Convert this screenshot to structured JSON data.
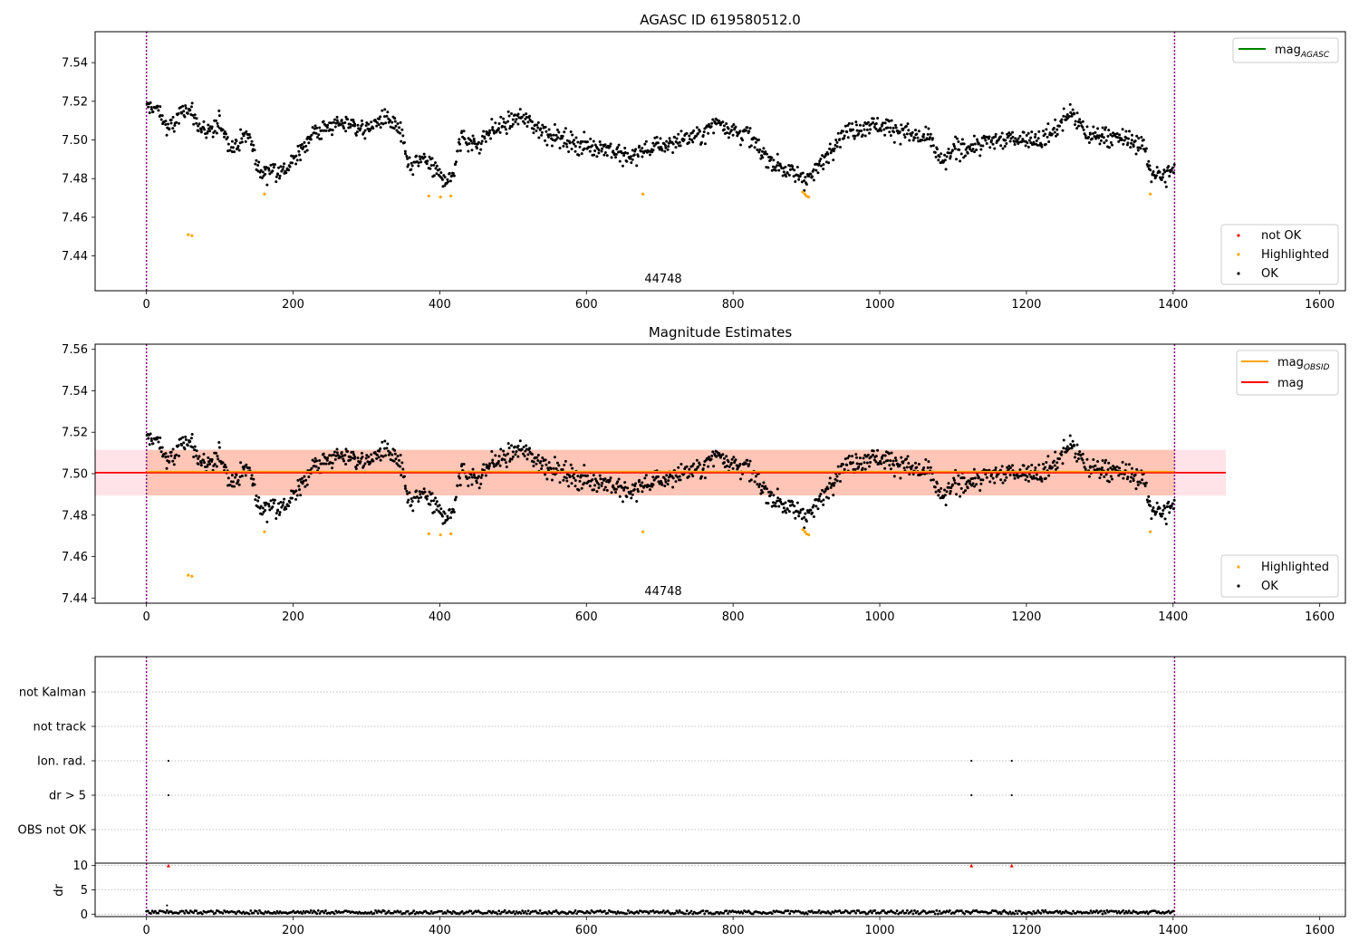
{
  "colors": {
    "ok": "#000000",
    "highlighted": "#ffa500",
    "not_ok": "#ff0000",
    "mag_agasc_line": "#008000",
    "mag_obsid_line": "#ffa500",
    "mag_line": "#ff0000",
    "mag_band": "#ffc0cb",
    "obsid_band": "#ffa07a",
    "obsid_boundary": "#800080"
  },
  "chart_data": [
    {
      "type": "scatter",
      "panel": "top",
      "title": "AGASC ID 619580512.0",
      "xlim": [
        -70,
        1635
      ],
      "ylim": [
        7.422,
        7.556
      ],
      "xticks": [
        0,
        200,
        400,
        600,
        800,
        1000,
        1200,
        1400,
        1600
      ],
      "yticks": [
        "7.44",
        "7.46",
        "7.48",
        "7.50",
        "7.52",
        "7.54"
      ],
      "obsid_label": {
        "text": "44748",
        "x": 700,
        "y": 7.426
      },
      "obsid_boundaries": [
        0,
        1402
      ],
      "legend_lines": [
        {
          "name": "mag",
          "subscript": "AGASC",
          "color": "#008000"
        }
      ],
      "legend_points": [
        {
          "name": "not OK",
          "color": "#ff0000"
        },
        {
          "name": "Highlighted",
          "color": "#ffa500"
        },
        {
          "name": "OK",
          "color": "#000000"
        }
      ],
      "highlighted_points": [
        [
          57,
          7.451
        ],
        [
          62,
          7.4505
        ],
        [
          161,
          7.472
        ],
        [
          385,
          7.471
        ],
        [
          401,
          7.4705
        ],
        [
          415,
          7.471
        ],
        [
          677,
          7.472
        ],
        [
          895,
          7.473
        ],
        [
          898,
          7.472
        ],
        [
          900,
          7.471
        ],
        [
          903,
          7.4705
        ],
        [
          1369,
          7.472
        ]
      ],
      "ok_series": {
        "x_range": [
          0,
          1402
        ],
        "count": 1402,
        "anchors": [
          [
            0,
            7.517
          ],
          [
            15,
            7.516
          ],
          [
            30,
            7.505
          ],
          [
            45,
            7.512
          ],
          [
            55,
            7.518
          ],
          [
            70,
            7.508
          ],
          [
            85,
            7.502
          ],
          [
            100,
            7.51
          ],
          [
            115,
            7.496
          ],
          [
            140,
            7.503
          ],
          [
            155,
            7.482
          ],
          [
            170,
            7.486
          ],
          [
            185,
            7.483
          ],
          [
            205,
            7.491
          ],
          [
            225,
            7.503
          ],
          [
            250,
            7.507
          ],
          [
            275,
            7.509
          ],
          [
            300,
            7.505
          ],
          [
            325,
            7.512
          ],
          [
            345,
            7.505
          ],
          [
            360,
            7.485
          ],
          [
            380,
            7.491
          ],
          [
            395,
            7.483
          ],
          [
            415,
            7.479
          ],
          [
            430,
            7.502
          ],
          [
            450,
            7.497
          ],
          [
            470,
            7.505
          ],
          [
            490,
            7.508
          ],
          [
            510,
            7.512
          ],
          [
            540,
            7.505
          ],
          [
            570,
            7.5
          ],
          [
            600,
            7.497
          ],
          [
            630,
            7.496
          ],
          [
            655,
            7.49
          ],
          [
            680,
            7.495
          ],
          [
            700,
            7.497
          ],
          [
            730,
            7.5
          ],
          [
            760,
            7.503
          ],
          [
            780,
            7.51
          ],
          [
            800,
            7.505
          ],
          [
            820,
            7.503
          ],
          [
            840,
            7.493
          ],
          [
            860,
            7.487
          ],
          [
            880,
            7.483
          ],
          [
            900,
            7.48
          ],
          [
            920,
            7.487
          ],
          [
            940,
            7.5
          ],
          [
            960,
            7.505
          ],
          [
            985,
            7.508
          ],
          [
            1010,
            7.507
          ],
          [
            1040,
            7.503
          ],
          [
            1070,
            7.5
          ],
          [
            1085,
            7.487
          ],
          [
            1100,
            7.495
          ],
          [
            1130,
            7.497
          ],
          [
            1160,
            7.5
          ],
          [
            1190,
            7.501
          ],
          [
            1220,
            7.5
          ],
          [
            1240,
            7.505
          ],
          [
            1260,
            7.515
          ],
          [
            1280,
            7.503
          ],
          [
            1310,
            7.502
          ],
          [
            1340,
            7.5
          ],
          [
            1360,
            7.497
          ],
          [
            1370,
            7.483
          ],
          [
            1385,
            7.481
          ],
          [
            1402,
            7.485
          ]
        ],
        "scatter_sd": 0.0045
      }
    },
    {
      "type": "scatter",
      "panel": "middle",
      "title": "Magnitude Estimates",
      "xlim": [
        -70,
        1635
      ],
      "ylim": [
        7.4375,
        7.5625
      ],
      "xticks": [
        0,
        200,
        400,
        600,
        800,
        1000,
        1200,
        1400,
        1600
      ],
      "yticks": [
        "7.44",
        "7.46",
        "7.48",
        "7.50",
        "7.52",
        "7.54",
        "7.56"
      ],
      "obsid_label": {
        "text": "44748",
        "x": 700,
        "y": 7.4415
      },
      "obsid_boundaries": [
        0,
        1402
      ],
      "mag": {
        "value": 7.5005,
        "band": [
          7.4895,
          7.5115
        ],
        "x_range": [
          -70,
          1472
        ]
      },
      "mag_obsid": {
        "value": 7.5005,
        "band": [
          7.4895,
          7.5115
        ],
        "x_range": [
          0,
          1402
        ]
      },
      "legend_lines": [
        {
          "name": "mag",
          "subscript": "OBSID",
          "color": "#ffa500"
        },
        {
          "name": "mag",
          "subscript": "",
          "color": "#ff0000"
        }
      ],
      "legend_points": [
        {
          "name": "Highlighted",
          "color": "#ffa500"
        },
        {
          "name": "OK",
          "color": "#000000"
        }
      ]
    },
    {
      "type": "scatter",
      "panel": "flags",
      "categories": [
        "OBS not OK",
        "dr > 5",
        "Ion. rad.",
        "not track",
        "not Kalman"
      ],
      "flagged_points": [
        {
          "category": "dr > 5",
          "x": [
            30,
            1125,
            1180
          ]
        },
        {
          "category": "Ion. rad.",
          "x": [
            30,
            1125,
            1180
          ]
        }
      ],
      "obsid_boundaries": [
        0,
        1402
      ]
    },
    {
      "type": "scatter",
      "panel": "dr",
      "ylabel": "dr",
      "xlim": [
        -70,
        1635
      ],
      "ylim": [
        -0.5,
        10.5
      ],
      "xticks": [
        0,
        200,
        400,
        600,
        800,
        1000,
        1200,
        1400,
        1600
      ],
      "yticks": [
        "0",
        "5",
        "10"
      ],
      "clipped_points": [
        [
          30,
          10
        ],
        [
          1125,
          10
        ],
        [
          1180,
          10
        ]
      ],
      "outlier_points": [
        [
          28,
          1.8
        ]
      ],
      "baseline": {
        "x_range": [
          0,
          1402
        ],
        "mean": 0.4,
        "spread": 0.35
      }
    }
  ]
}
